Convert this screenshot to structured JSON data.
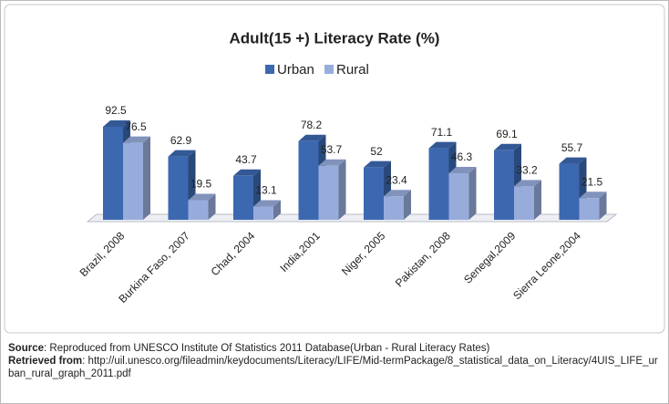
{
  "chart_data": {
    "type": "bar3d",
    "title": "Adult(15 +) Literacy Rate (%)",
    "categories": [
      "Brazil, 2008",
      "Burkina Faso, 2007",
      "Chad, 2004",
      "India,2001",
      "Niger, 2005",
      "Pakistan, 2008",
      "Senegal,2009",
      "Sierra Leone,2004"
    ],
    "series": [
      {
        "name": "Urban",
        "color": "#3c68b0",
        "values": [
          92.5,
          62.9,
          43.7,
          78.2,
          52,
          71.1,
          69.1,
          55.7
        ]
      },
      {
        "name": "Rural",
        "color": "#98acdc",
        "values": [
          76.5,
          19.5,
          13.1,
          53.7,
          23.4,
          46.3,
          33.2,
          21.5
        ]
      }
    ],
    "legend": "top"
  },
  "notes": {
    "source_label": "Source",
    "source_text": ": Reproduced from UNESCO Institute Of Statistics 2011 Database(Urban - Rural Literacy Rates)",
    "retrieved_label": "Retrieved from",
    "retrieved_text": ": http://uil.unesco.org/fileadmin/keydocuments/Literacy/LIFE/Mid-termPackage/8_statistical_data_on_Literacy/4UIS_LIFE_urban_rural_graph_2011.pdf"
  }
}
